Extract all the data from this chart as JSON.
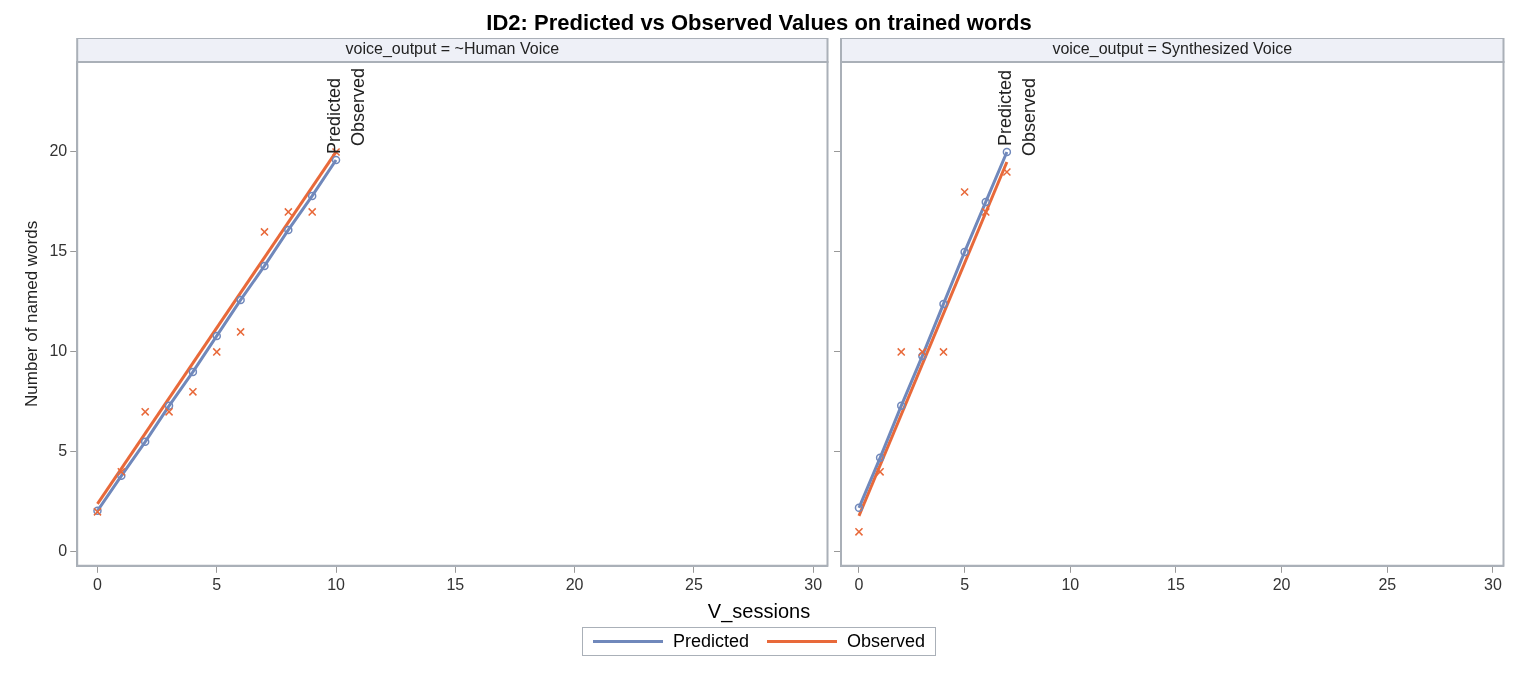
{
  "chart_data": [
    {
      "type": "line",
      "title": "ID2: Predicted vs Observed Values on trained words",
      "subtitle": "voice_output = ~Human Voice",
      "xlabel": "V_sessions",
      "ylabel": "Number of named words",
      "legend": "bottom",
      "grid": false,
      "xlim": [
        -0.85,
        30.6
      ],
      "xticks": [
        0,
        5,
        10,
        15,
        20,
        25,
        30
      ],
      "ylim": [
        -0.7,
        24.5
      ],
      "yticks": [
        0,
        5,
        10,
        15,
        20
      ],
      "series": [
        {
          "name": "Predicted",
          "type": "line",
          "marker": "circle",
          "color": "#7088bb",
          "x": [
            0,
            1,
            2,
            3,
            4,
            5,
            6,
            7,
            8,
            9,
            10
          ],
          "values": [
            2.05,
            3.8,
            5.5,
            7.3,
            9.0,
            10.8,
            12.6,
            14.3,
            16.1,
            17.8,
            19.6
          ]
        },
        {
          "name": "Observed",
          "type": "line",
          "marker": "none",
          "color": "#e8693a",
          "x": [
            0,
            10
          ],
          "values": [
            2.4,
            20.0
          ]
        },
        {
          "type": "scatter",
          "marker": "cross",
          "color": "#e8693a",
          "x": [
            0,
            1,
            2,
            3,
            4,
            5,
            6,
            7,
            8,
            9,
            10
          ],
          "values": [
            2,
            4,
            7,
            7,
            8,
            10,
            11,
            16,
            17,
            17,
            20
          ]
        }
      ]
    },
    {
      "type": "line",
      "subtitle": "voice_output = Synthesized Voice",
      "tick_labels": "x",
      "grid": false,
      "xlim": [
        -0.85,
        30.5
      ],
      "xticks": [
        0,
        5,
        10,
        15,
        20,
        25,
        30
      ],
      "ylim": [
        -0.7,
        24.5
      ],
      "yticks": [
        0,
        5,
        10,
        15,
        20
      ],
      "series": [
        {
          "name": "Predicted",
          "type": "line",
          "marker": "circle",
          "color": "#7088bb",
          "x": [
            0,
            1,
            2,
            3,
            4,
            5,
            6,
            7
          ],
          "values": [
            2.2,
            4.7,
            7.3,
            9.8,
            12.4,
            15.0,
            17.5,
            20.0
          ]
        },
        {
          "name": "Observed",
          "type": "line",
          "marker": "none",
          "color": "#e8693a",
          "x": [
            0,
            7
          ],
          "values": [
            1.8,
            19.5
          ]
        },
        {
          "type": "scatter",
          "marker": "cross",
          "color": "#e8693a",
          "x": [
            0,
            1,
            2,
            3,
            4,
            5,
            6,
            7
          ],
          "values": [
            1,
            4,
            10,
            10,
            10,
            18,
            17,
            19
          ]
        }
      ]
    }
  ]
}
